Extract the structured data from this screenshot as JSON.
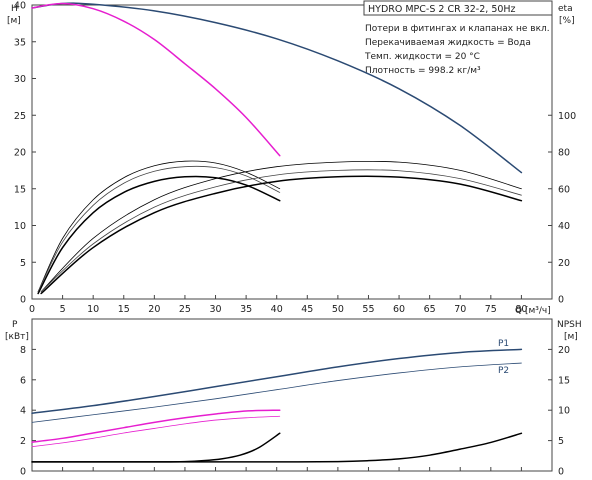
{
  "chart_data": [
    {
      "type": "line",
      "title": "HYDRO MPC-S 2 CR 32-2, 50Hz",
      "notes": [
        "Потери в фитингах и клапанах не вкл.",
        "Перекачиваемая жидкость = Вода",
        "Темп. жидкости = 20 °C",
        "Плотность = 998.2 кг/м³"
      ],
      "xlabel": "Q [м³/ч]",
      "ylabel_left": [
        "H",
        "[м]"
      ],
      "ylabel_right": [
        "eta",
        "[%]"
      ],
      "xlim": [
        0,
        85
      ],
      "ylim_left": [
        0,
        40
      ],
      "ylim_right": [
        0,
        160
      ],
      "xticks": [
        "0",
        "5",
        "10",
        "15",
        "20",
        "25",
        "30",
        "35",
        "40",
        "45",
        "50",
        "55",
        "60",
        "65",
        "70",
        "75",
        "80"
      ],
      "yticks_left": [
        "0",
        "5",
        "10",
        "15",
        "20",
        "25",
        "30",
        "35",
        "40"
      ],
      "yticks_right": [
        "0",
        "20",
        "40",
        "60",
        "80",
        "100"
      ],
      "grid": false,
      "series": [
        {
          "axis": "left",
          "color": "#2b4a73",
          "width": 1.5,
          "x": [
            0,
            5,
            10,
            20,
            30,
            40,
            50,
            60,
            70,
            80
          ],
          "y": [
            39.6,
            40.2,
            40.1,
            39.2,
            37.6,
            35.4,
            32.4,
            28.6,
            23.6,
            17.2
          ]
        },
        {
          "axis": "left",
          "color": "#e61ecf",
          "width": 1.5,
          "x": [
            0,
            5,
            10,
            15,
            20,
            25,
            30,
            35,
            40.5
          ],
          "y": [
            39.6,
            40.2,
            39.5,
            37.8,
            35.3,
            32.0,
            28.6,
            24.7,
            19.5
          ]
        },
        {
          "axis": "right",
          "color": "#000000",
          "width": 1.5,
          "x": [
            1,
            5,
            10,
            15,
            20,
            25,
            30,
            35,
            40.5
          ],
          "y": [
            3,
            28,
            47,
            58,
            64,
            66.5,
            66,
            62,
            53.5
          ]
        },
        {
          "axis": "right",
          "color": "#000000",
          "width": 0.8,
          "x": [
            1,
            5,
            10,
            15,
            20,
            25,
            30,
            35,
            40.5
          ],
          "y": [
            4,
            33,
            54,
            66,
            72.5,
            75,
            74,
            69,
            60
          ]
        },
        {
          "axis": "right",
          "color": "#444444",
          "width": 0.8,
          "x": [
            1,
            5,
            10,
            15,
            20,
            25,
            30,
            35,
            40.5
          ],
          "y": [
            4,
            31,
            51,
            63,
            69.5,
            72,
            71.5,
            67,
            58
          ]
        },
        {
          "axis": "right",
          "color": "#000000",
          "width": 1.5,
          "x": [
            1.5,
            10,
            20,
            30,
            40,
            50,
            60,
            70,
            80
          ],
          "y": [
            3,
            28,
            47,
            57.5,
            64,
            66.5,
            66.3,
            62.5,
            53.5
          ]
        },
        {
          "axis": "right",
          "color": "#000000",
          "width": 0.8,
          "x": [
            1.5,
            10,
            20,
            30,
            40,
            50,
            60,
            70,
            80
          ],
          "y": [
            4,
            33,
            54,
            65.5,
            72,
            74.5,
            74.5,
            70,
            60
          ]
        },
        {
          "axis": "right",
          "color": "#444444",
          "width": 0.8,
          "x": [
            1.5,
            10,
            20,
            30,
            40,
            50,
            60,
            70,
            80
          ],
          "y": [
            4,
            30,
            50,
            61,
            67.5,
            70,
            69.8,
            65.5,
            56.5
          ]
        }
      ]
    },
    {
      "type": "line",
      "ylabel_left": [
        "P",
        "[кВт]"
      ],
      "ylabel_right": [
        "NPSH",
        "[м]"
      ],
      "xlim": [
        0,
        85
      ],
      "ylim_left": [
        0,
        10
      ],
      "ylim_right": [
        0,
        25
      ],
      "yticks_left": [
        "0",
        "2",
        "4",
        "6",
        "8"
      ],
      "yticks_right": [
        "0",
        "5",
        "10",
        "15",
        "20"
      ],
      "grid": false,
      "labels": [
        "P1",
        "P2"
      ],
      "series": [
        {
          "name": "P1",
          "axis": "left",
          "color": "#2b4a73",
          "width": 1.5,
          "x": [
            0,
            10,
            20,
            30,
            40,
            50,
            60,
            70,
            80
          ],
          "y": [
            3.8,
            4.3,
            4.9,
            5.55,
            6.2,
            6.85,
            7.4,
            7.8,
            8.0
          ]
        },
        {
          "name": "P2",
          "axis": "left",
          "color": "#2b4a73",
          "width": 0.8,
          "x": [
            0,
            10,
            20,
            30,
            40,
            50,
            60,
            70,
            80
          ],
          "y": [
            3.2,
            3.7,
            4.2,
            4.75,
            5.35,
            5.95,
            6.45,
            6.85,
            7.1
          ]
        },
        {
          "axis": "left",
          "color": "#e61ecf",
          "width": 1.5,
          "x": [
            0,
            5,
            10,
            15,
            20,
            25,
            30,
            35,
            40.5
          ],
          "y": [
            1.9,
            2.15,
            2.5,
            2.85,
            3.2,
            3.5,
            3.75,
            3.95,
            4.0
          ]
        },
        {
          "axis": "left",
          "color": "#e61ecf",
          "width": 0.8,
          "x": [
            0,
            5,
            10,
            15,
            20,
            25,
            30,
            35,
            40.5
          ],
          "y": [
            1.6,
            1.85,
            2.15,
            2.5,
            2.8,
            3.1,
            3.35,
            3.5,
            3.6
          ]
        },
        {
          "axis": "right",
          "color": "#000000",
          "width": 1.5,
          "x": [
            0,
            5,
            10,
            15,
            20,
            25,
            28,
            31,
            34,
            37,
            40.5
          ],
          "y": [
            1.5,
            1.5,
            1.5,
            1.5,
            1.5,
            1.55,
            1.7,
            2.0,
            2.6,
            3.8,
            6.2
          ]
        },
        {
          "axis": "right",
          "color": "#000000",
          "width": 1.5,
          "x": [
            0,
            10,
            20,
            30,
            40,
            50,
            55,
            60,
            65,
            70,
            75,
            80
          ],
          "y": [
            1.5,
            1.5,
            1.5,
            1.5,
            1.5,
            1.55,
            1.7,
            2.0,
            2.6,
            3.6,
            4.7,
            6.2
          ]
        }
      ]
    }
  ]
}
